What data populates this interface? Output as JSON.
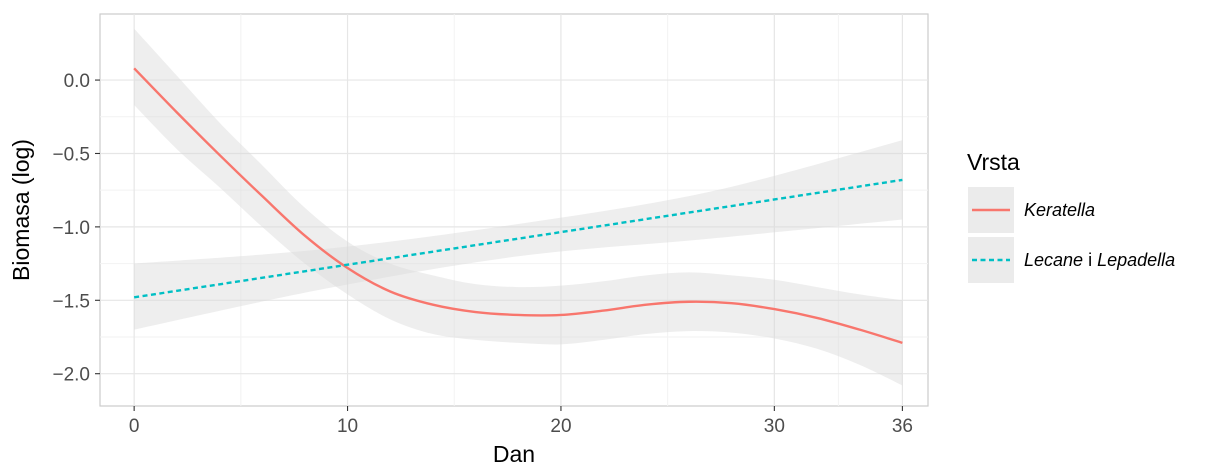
{
  "chart_data": {
    "type": "line",
    "xlabel": "Dan",
    "ylabel": "Biomasa (log)",
    "xlim": [
      -1.6,
      37.2
    ],
    "ylim": [
      -2.22,
      0.45
    ],
    "x_ticks": [
      0,
      10,
      20,
      30,
      36
    ],
    "x_tick_labels": [
      "0",
      "10",
      "20",
      "30",
      "36"
    ],
    "y_ticks": [
      0.0,
      -0.5,
      -1.0,
      -1.5,
      -2.0
    ],
    "y_tick_labels": [
      "0.0",
      "−0.5",
      "−1.0",
      "−1.5",
      "−2.0"
    ],
    "grid": true,
    "legend_position": "right",
    "legend": {
      "title": "Vrsta",
      "items": [
        {
          "parts": [
            {
              "text": "Keratella",
              "italic": true
            }
          ]
        },
        {
          "parts": [
            {
              "text": "Lecane",
              "italic": true
            },
            {
              "text": " i ",
              "italic": false
            },
            {
              "text": "Lepadella",
              "italic": true
            }
          ]
        }
      ]
    },
    "series": [
      {
        "style": "solid",
        "color": "#F8766D",
        "x": [
          0,
          2,
          4,
          6,
          8,
          10,
          12,
          14,
          16,
          18,
          20,
          22,
          24,
          26,
          28,
          30,
          32,
          34,
          36
        ],
        "y": [
          0.08,
          -0.22,
          -0.51,
          -0.79,
          -1.06,
          -1.28,
          -1.44,
          -1.53,
          -1.58,
          -1.6,
          -1.6,
          -1.57,
          -1.53,
          -1.51,
          -1.52,
          -1.56,
          -1.62,
          -1.7,
          -1.79
        ],
        "ci_upper": [
          0.35,
          0.03,
          -0.29,
          -0.58,
          -0.87,
          -1.1,
          -1.25,
          -1.33,
          -1.39,
          -1.41,
          -1.4,
          -1.37,
          -1.33,
          -1.31,
          -1.33,
          -1.36,
          -1.41,
          -1.46,
          -1.5
        ],
        "ci_lower": [
          -0.17,
          -0.47,
          -0.73,
          -1.0,
          -1.25,
          -1.46,
          -1.63,
          -1.73,
          -1.77,
          -1.79,
          -1.8,
          -1.77,
          -1.73,
          -1.71,
          -1.72,
          -1.76,
          -1.83,
          -1.94,
          -2.08
        ]
      },
      {
        "style": "dashed",
        "color": "#00BFC4",
        "x": [
          0,
          36
        ],
        "y": [
          -1.48,
          -0.68
        ],
        "ci_upper_x": [
          0,
          9,
          18,
          27,
          36
        ],
        "ci_upper": [
          -1.25,
          -1.15,
          -0.98,
          -0.76,
          -0.41
        ],
        "ci_lower": [
          -1.7,
          -1.42,
          -1.2,
          -1.08,
          -0.95
        ]
      }
    ]
  }
}
